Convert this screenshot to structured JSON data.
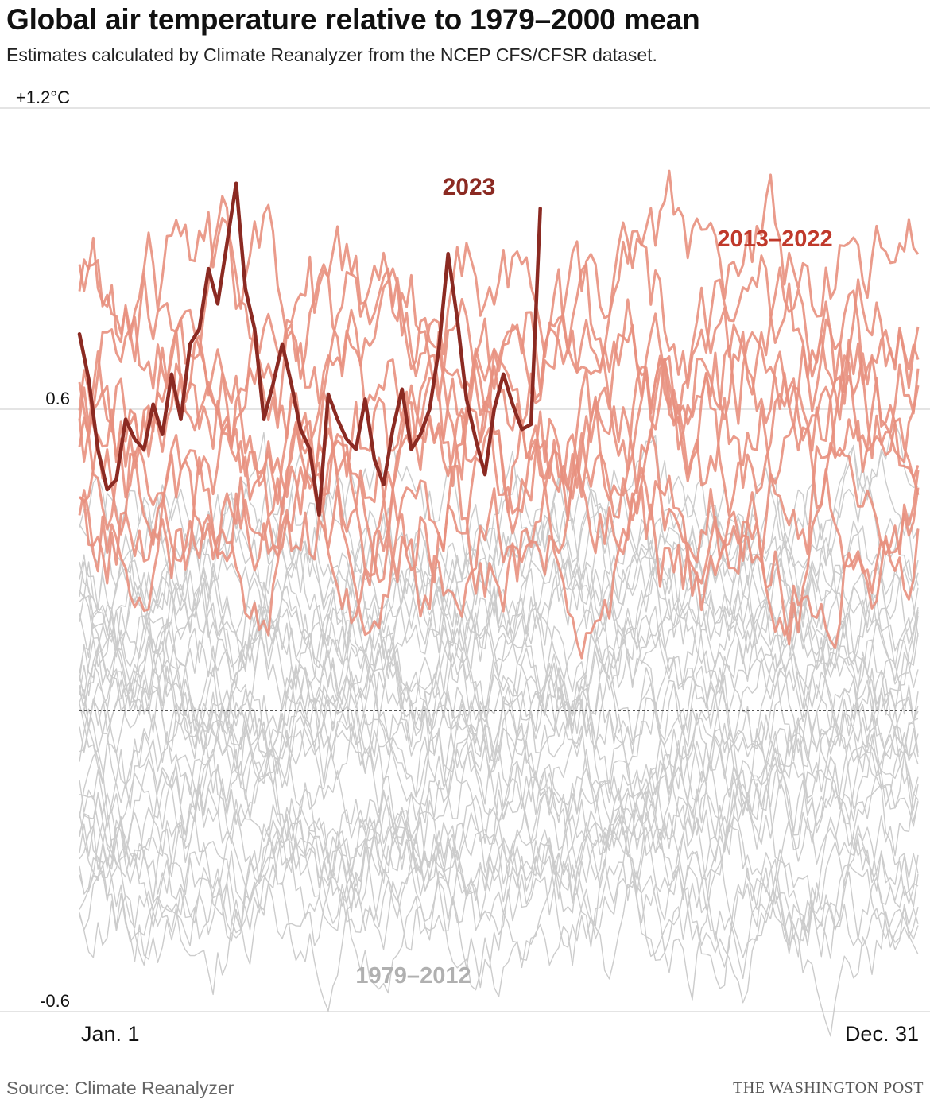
{
  "title": "Global air temperature relative to 1979–2000 mean",
  "subtitle": "Estimates calculated by Climate Reanalyzer from the NCEP CFS/CFSR dataset.",
  "source": "Source: Climate Reanalyzer",
  "credit": "THE WASHINGTON POST",
  "colors": {
    "y2023": "#8b2a22",
    "recent": "#e8907e",
    "recent_label": "#c0392b",
    "historic": "#cccccc",
    "historic_label": "#b0b0b0",
    "grid": "#c8c8c8",
    "baseline": "#555555"
  },
  "chart_data": {
    "type": "line",
    "title": "Global air temperature relative to 1979–2000 mean",
    "xlabel": "",
    "ylabel": "",
    "x_tick_labels": [
      "Jan. 1",
      "Dec. 31"
    ],
    "x_range": [
      1,
      365
    ],
    "y_ticks": [
      {
        "value": 1.2,
        "label": "+1.2°C"
      },
      {
        "value": 0.6,
        "label": "0.6"
      },
      {
        "value": -0.6,
        "label": "-0.6"
      }
    ],
    "ylim": [
      -0.6,
      1.2
    ],
    "baseline": 0,
    "grid": true,
    "series_labels": [
      {
        "group": "y2023",
        "text": "2023"
      },
      {
        "group": "recent",
        "text": "2013–2022"
      },
      {
        "group": "historic",
        "text": "1979–2012"
      }
    ],
    "series": [
      {
        "name": "2023",
        "group": "y2023",
        "x": [
          1,
          5,
          9,
          13,
          17,
          21,
          25,
          29,
          33,
          37,
          41,
          45,
          49,
          53,
          57,
          61,
          65,
          69,
          73,
          77,
          81,
          85,
          89,
          93,
          97,
          101,
          105,
          109,
          113,
          117,
          121,
          125,
          129,
          133,
          137,
          141,
          145,
          149,
          153,
          157,
          161,
          165,
          169,
          173,
          177,
          181,
          185,
          189,
          193,
          197,
          201
        ],
        "values": [
          0.75,
          0.66,
          0.52,
          0.44,
          0.46,
          0.58,
          0.54,
          0.52,
          0.61,
          0.55,
          0.67,
          0.58,
          0.73,
          0.76,
          0.88,
          0.81,
          0.93,
          1.05,
          0.84,
          0.76,
          0.58,
          0.65,
          0.73,
          0.65,
          0.56,
          0.52,
          0.39,
          0.63,
          0.58,
          0.54,
          0.52,
          0.62,
          0.5,
          0.45,
          0.56,
          0.64,
          0.52,
          0.55,
          0.6,
          0.72,
          0.91,
          0.78,
          0.62,
          0.54,
          0.47,
          0.6,
          0.67,
          0.61,
          0.56,
          0.57,
          1.0
        ]
      },
      {
        "name": "2013–2022",
        "group": "recent",
        "x": [
          1,
          365
        ],
        "y_stats": {
          "annual_range": [
            0.05,
            1.15
          ]
        }
      },
      {
        "name": "1979–2012",
        "group": "historic",
        "x": [
          1,
          365
        ],
        "y_stats": {
          "annual_range": [
            -0.65,
            0.5
          ]
        }
      }
    ]
  }
}
